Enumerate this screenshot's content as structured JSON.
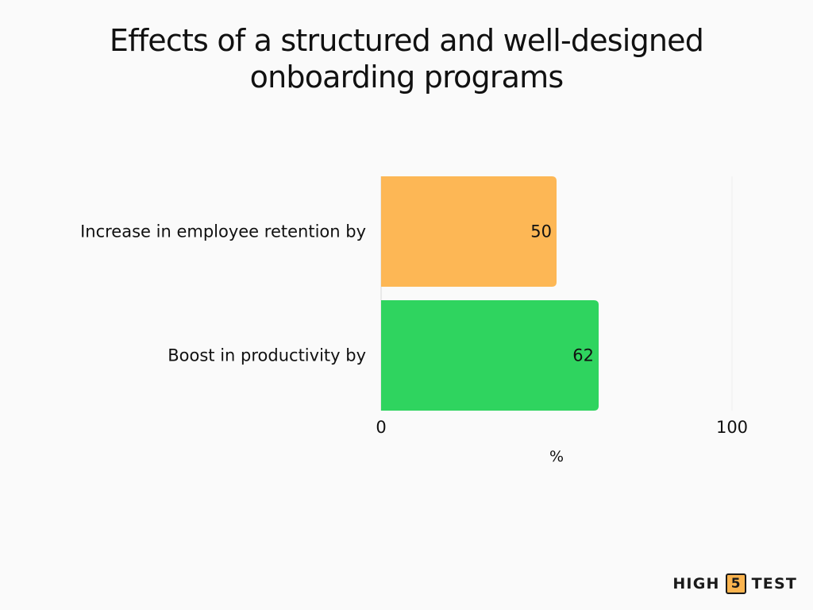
{
  "title_lines": [
    "Effects of a structured and well-designed",
    "onboarding programs"
  ],
  "brand": {
    "left": "HIGH",
    "number": "5",
    "right": "TEST"
  },
  "chart_data": {
    "type": "bar",
    "orientation": "horizontal",
    "title": "Effects of a structured and well-designed onboarding programs",
    "categories": [
      "Increase in employee retention by",
      "Boost in productivity by"
    ],
    "values": [
      50,
      62
    ],
    "bar_colors": [
      "#fdb755",
      "#2fd45f"
    ],
    "xlabel": "%",
    "ylabel": "",
    "xlim": [
      0,
      100
    ],
    "x_ticks": [
      0,
      100
    ],
    "data_labels": true,
    "legend": "none",
    "grid": false
  }
}
